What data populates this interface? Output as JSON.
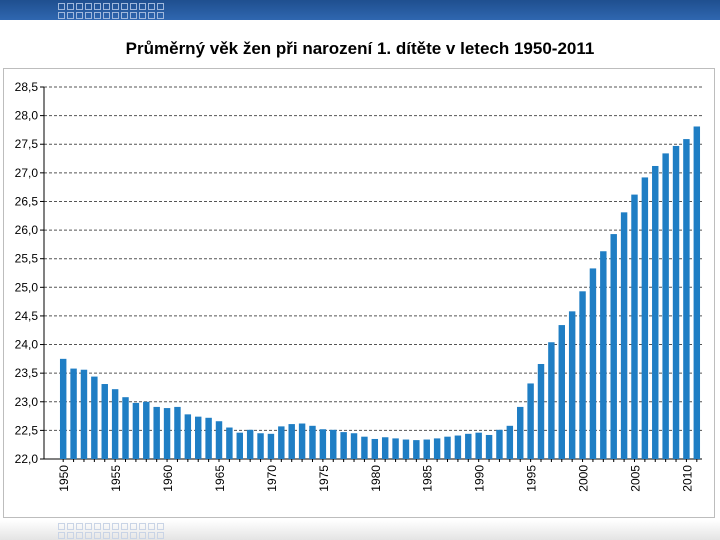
{
  "chart_data": {
    "type": "bar",
    "title": "Průměrný věk žen při narození 1. dítěte v letech 1950-2011",
    "xlabel": "",
    "ylabel": "",
    "ylim": [
      22.0,
      28.5
    ],
    "yticks": [
      "22,0",
      "22,5",
      "23,0",
      "23,5",
      "24,0",
      "24,5",
      "25,0",
      "25,5",
      "26,0",
      "26,5",
      "27,0",
      "27,5",
      "28,0",
      "28,5"
    ],
    "xtick_labels": [
      "1950",
      "1955",
      "1960",
      "1965",
      "1970",
      "1975",
      "1980",
      "1985",
      "1990",
      "1995",
      "2000",
      "2005",
      "2010"
    ],
    "grid": "horizontal-dashed",
    "bar_color": "#1f7ec4",
    "categories": [
      1950,
      1951,
      1952,
      1953,
      1954,
      1955,
      1956,
      1957,
      1958,
      1959,
      1960,
      1961,
      1962,
      1963,
      1964,
      1965,
      1966,
      1967,
      1968,
      1969,
      1970,
      1971,
      1972,
      1973,
      1974,
      1975,
      1976,
      1977,
      1978,
      1979,
      1980,
      1981,
      1982,
      1983,
      1984,
      1985,
      1986,
      1987,
      1988,
      1989,
      1990,
      1991,
      1992,
      1993,
      1994,
      1995,
      1996,
      1997,
      1998,
      1999,
      2000,
      2001,
      2002,
      2003,
      2004,
      2005,
      2006,
      2007,
      2008,
      2009,
      2010,
      2011
    ],
    "values": [
      23.75,
      23.58,
      23.56,
      23.44,
      23.31,
      23.22,
      23.08,
      22.98,
      23.0,
      22.91,
      22.89,
      22.91,
      22.78,
      22.74,
      22.72,
      22.66,
      22.55,
      22.46,
      22.51,
      22.45,
      22.44,
      22.57,
      22.61,
      22.62,
      22.58,
      22.52,
      22.51,
      22.47,
      22.45,
      22.39,
      22.35,
      22.38,
      22.36,
      22.34,
      22.33,
      22.34,
      22.36,
      22.39,
      22.41,
      22.44,
      22.46,
      22.42,
      22.51,
      22.58,
      22.91,
      23.32,
      23.66,
      24.04,
      24.34,
      24.58,
      24.93,
      25.33,
      25.63,
      25.93,
      26.31,
      26.62,
      26.92,
      27.12,
      27.34,
      27.47,
      27.59,
      27.81
    ]
  }
}
